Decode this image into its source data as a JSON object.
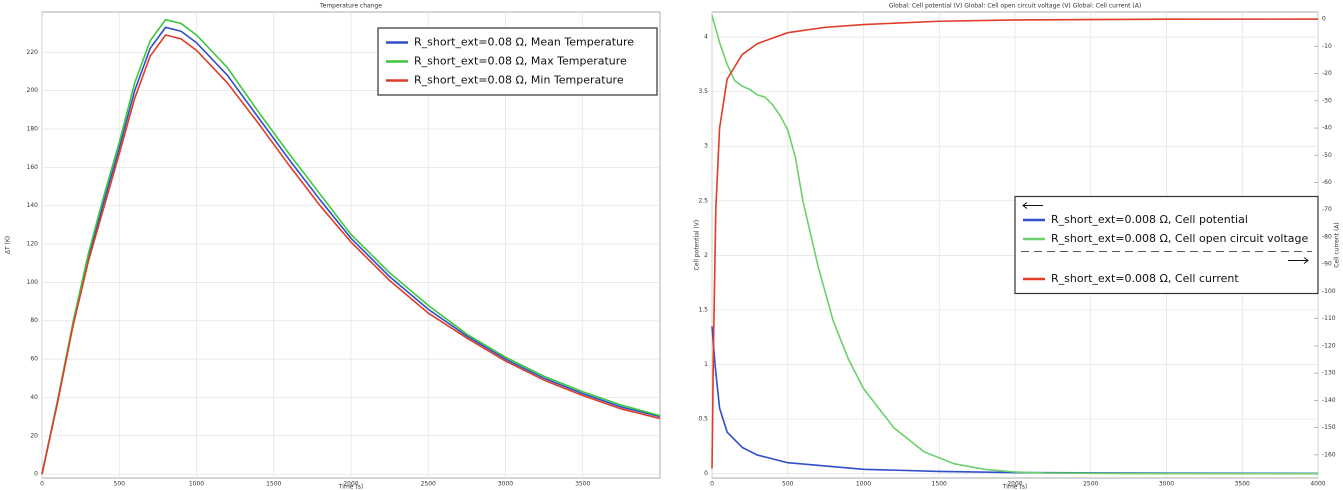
{
  "chart_data": [
    {
      "type": "line",
      "title": "Temperature change",
      "xlabel": "Time (s)",
      "ylabel": "ΔT (K)",
      "x": [
        0,
        100,
        200,
        300,
        400,
        500,
        600,
        700,
        800,
        900,
        1000,
        1200,
        1400,
        1600,
        1800,
        2000,
        2250,
        2500,
        2750,
        3000,
        3250,
        3500,
        3750,
        4000
      ],
      "series": [
        {
          "name": "R_short_ext=0.08 Ω, Mean Temperature",
          "color": "#3050c8",
          "values": [
            0,
            38,
            78,
            113,
            142,
            170,
            200,
            222,
            233,
            231,
            225,
            208,
            186,
            164,
            143,
            123,
            103,
            86,
            72,
            60,
            50,
            42,
            35,
            30
          ]
        },
        {
          "name": "R_short_ext=0.08 Ω, Max Temperature",
          "color": "#3cc83c",
          "values": [
            0,
            38,
            79,
            115,
            145,
            173,
            204,
            226,
            237,
            235,
            229,
            212,
            189,
            167,
            146,
            125,
            105,
            88,
            73,
            61,
            51,
            43,
            36,
            30.5
          ]
        },
        {
          "name": "R_short_ext=0.08 Ω, Min Temperature",
          "color": "#e03c28",
          "values": [
            0,
            37,
            77,
            111,
            139,
            167,
            196,
            218,
            229,
            227,
            221,
            204,
            183,
            161,
            140,
            121,
            101,
            84,
            71,
            59,
            49,
            41,
            34,
            29
          ]
        }
      ],
      "xlim": [
        0,
        4000
      ],
      "xticks": [
        0,
        500,
        1000,
        1500,
        2000,
        2500,
        3000,
        3500
      ],
      "ylim": [
        -2,
        241
      ],
      "yticks": [
        0,
        20,
        40,
        60,
        80,
        100,
        120,
        140,
        160,
        180,
        200,
        220
      ],
      "grid": true,
      "legend": "upper right"
    },
    {
      "type": "line",
      "title": "Global: Cell potential (V)  Global: Cell open circuit voltage (V)  Global: Cell current (A)",
      "xlabel": "Time (s)",
      "ylabel": "Cell potential (V)",
      "y2label": "Cell current (A)",
      "series": [
        {
          "name": "R_short_ext=0.008 Ω, Cell potential",
          "color": "#3050c8",
          "x": [
            0,
            20,
            50,
            100,
            200,
            300,
            500,
            1000,
            1500,
            2000,
            3000,
            4000
          ],
          "values": [
            1.35,
            1.0,
            0.6,
            0.38,
            0.24,
            0.17,
            0.1,
            0.04,
            0.02,
            0.01,
            0.004,
            0.002
          ]
        },
        {
          "name": "R_short_ext=0.008 Ω, Cell open circuit voltage",
          "color": "#6cd06c",
          "x": [
            0,
            50,
            100,
            150,
            200,
            250,
            300,
            350,
            400,
            450,
            500,
            550,
            600,
            700,
            800,
            900,
            1000,
            1200,
            1400,
            1600,
            1800,
            2000,
            2200,
            3000,
            4000
          ],
          "values": [
            4.2,
            3.95,
            3.75,
            3.6,
            3.55,
            3.52,
            3.47,
            3.45,
            3.38,
            3.28,
            3.15,
            2.9,
            2.5,
            1.9,
            1.4,
            1.05,
            0.78,
            0.42,
            0.2,
            0.09,
            0.04,
            0.015,
            0.005,
            0,
            0
          ]
        },
        {
          "name": "R_short_ext=0.008 Ω, Cell current",
          "color": "#e03c28",
          "axis": "y2",
          "x": [
            0,
            10,
            25,
            50,
            100,
            200,
            300,
            500,
            750,
            1000,
            1500,
            2000,
            3000,
            4000
          ],
          "values": [
            -165,
            -120,
            -70,
            -40,
            -22,
            -13,
            -9,
            -5,
            -3,
            -2,
            -0.8,
            -0.3,
            -0.05,
            0
          ]
        }
      ],
      "xlim": [
        0,
        4000
      ],
      "xticks": [
        0,
        500,
        1000,
        1500,
        2000,
        2500,
        3000,
        3500,
        4000
      ],
      "ylim": [
        -0.04,
        4.23
      ],
      "yticks": [
        0,
        0.5,
        1,
        1.5,
        2,
        2.5,
        3,
        3.5,
        4
      ],
      "y2lim": [
        -168.5,
        2.6
      ],
      "y2ticks": [
        0,
        -10,
        -20,
        -30,
        -40,
        -50,
        -60,
        -70,
        -80,
        -90,
        -100,
        -110,
        -120,
        -130,
        -140,
        -150,
        -160
      ],
      "grid": true,
      "legend": "center right"
    }
  ]
}
